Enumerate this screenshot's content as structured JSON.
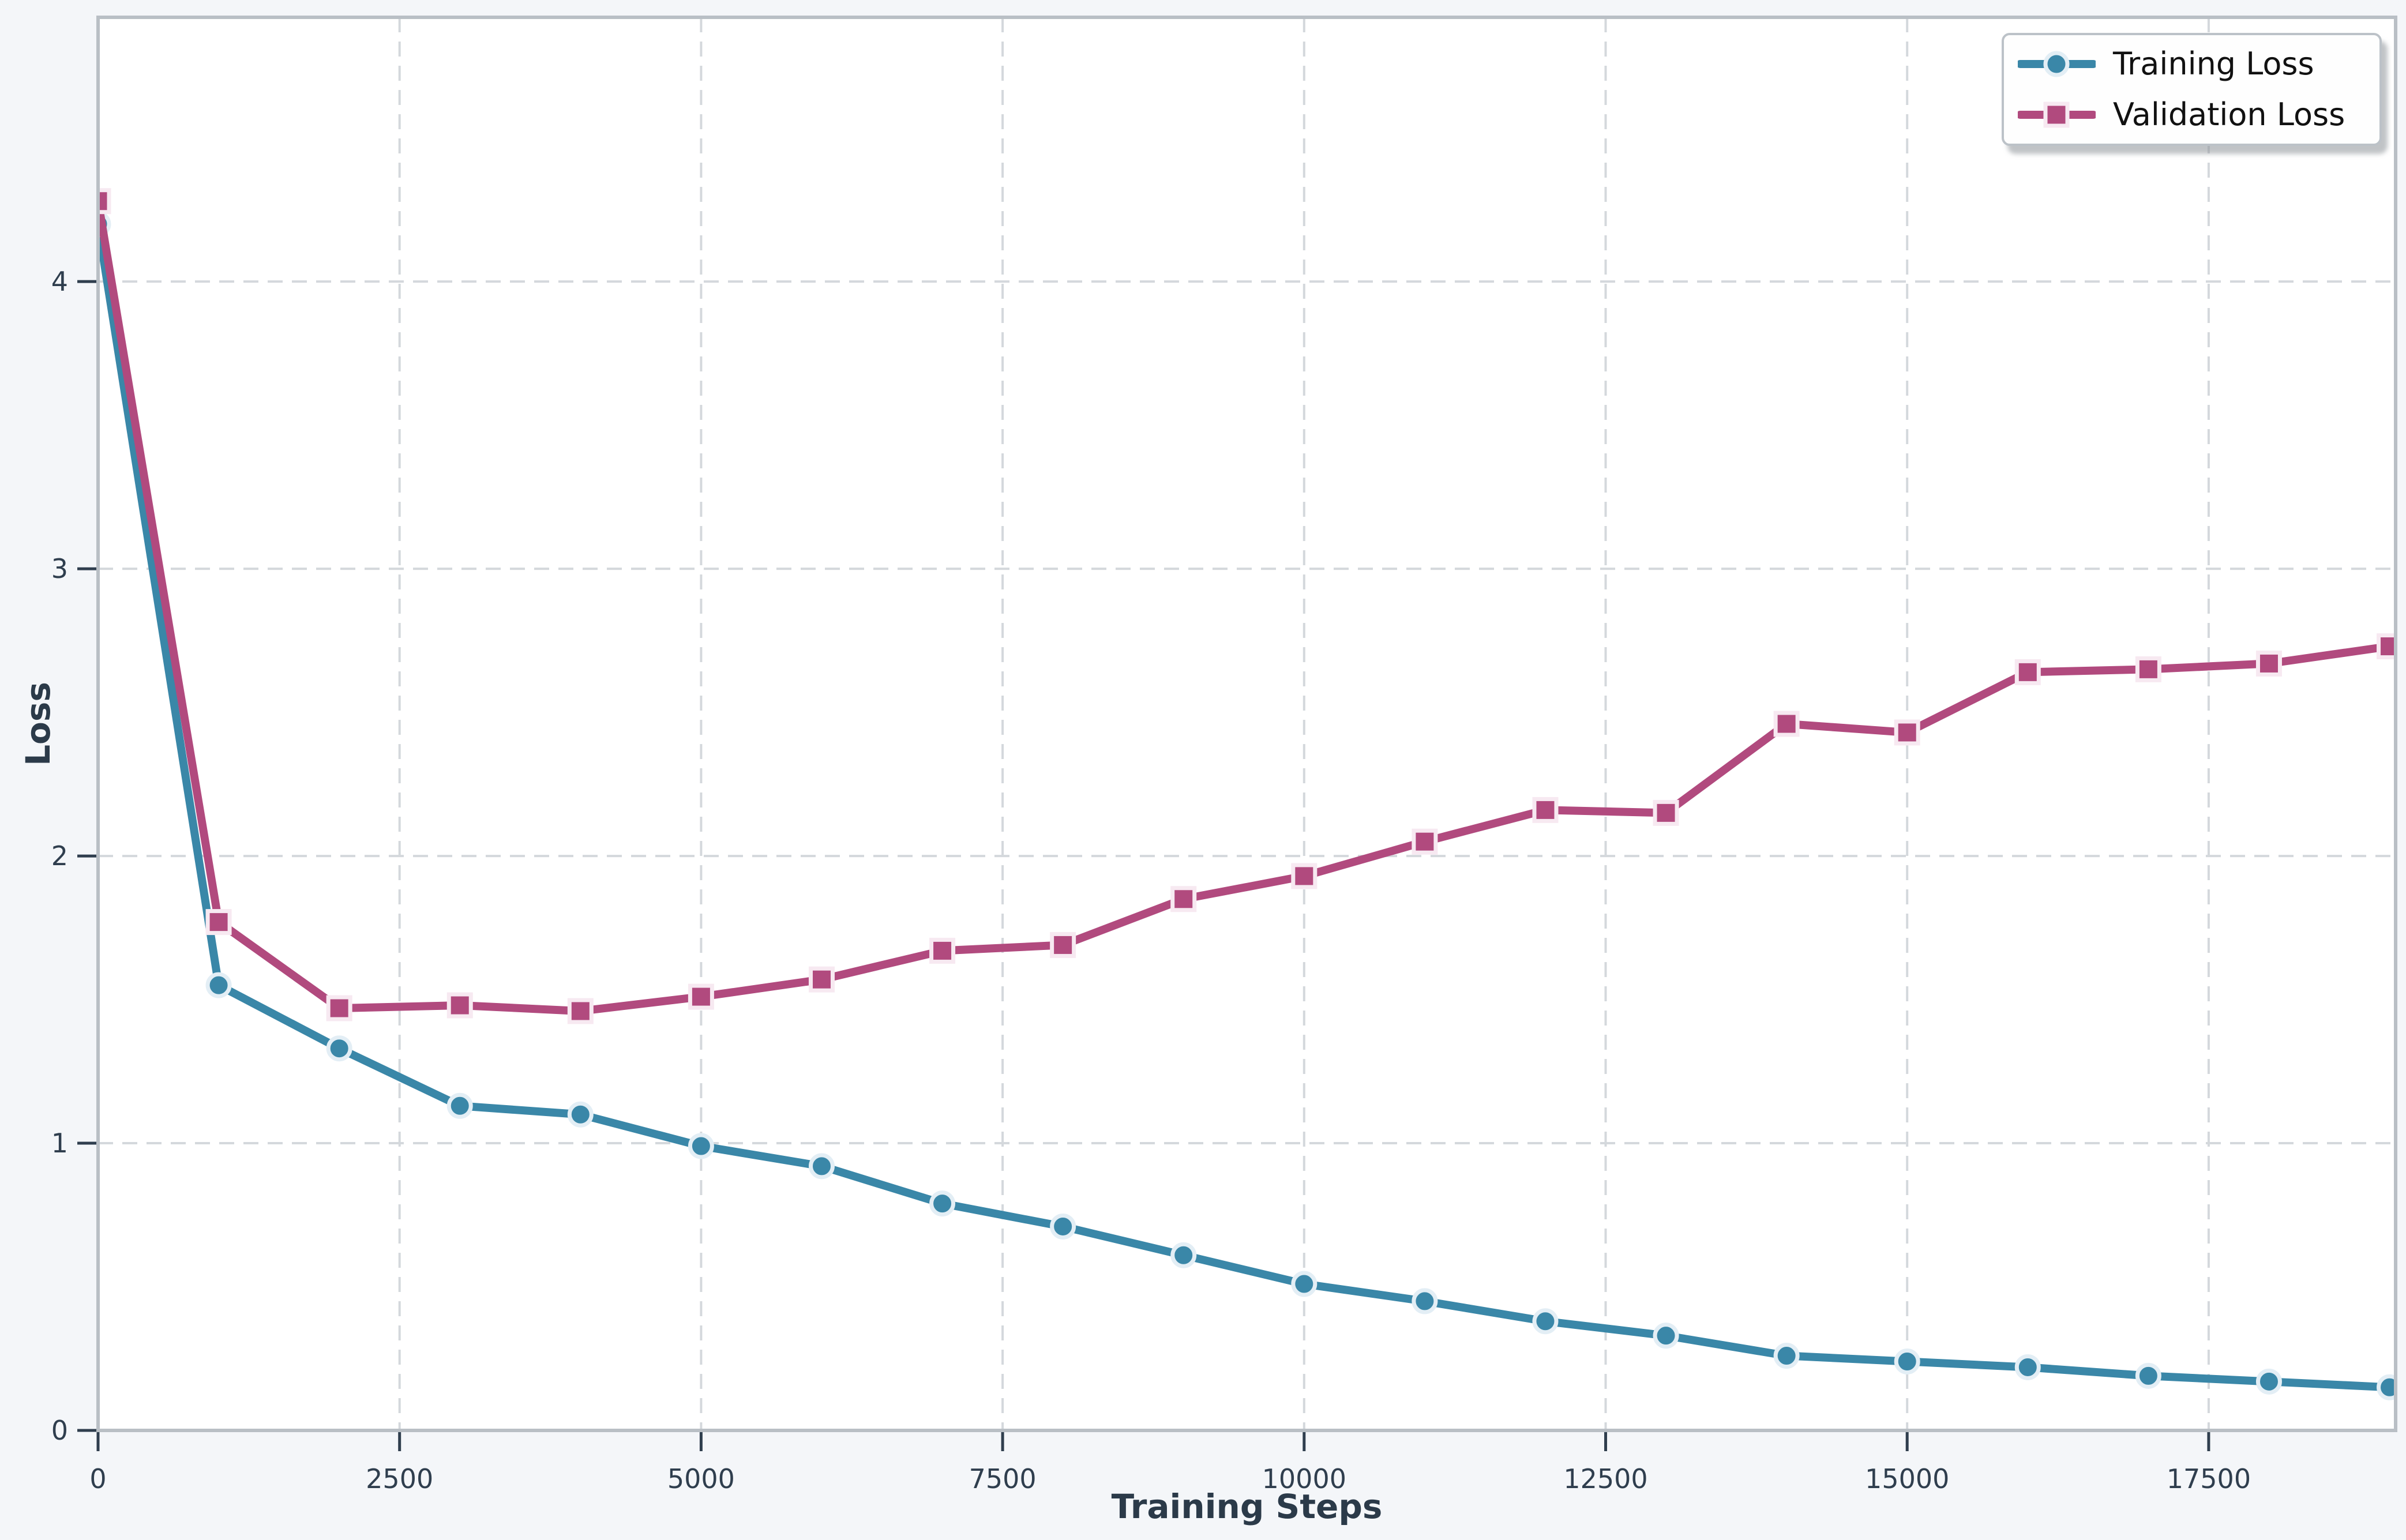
{
  "chart_data": {
    "type": "line",
    "title": "",
    "xlabel": "Training Steps",
    "ylabel": "Loss",
    "x": [
      0,
      1000,
      2000,
      3000,
      4000,
      5000,
      6000,
      7000,
      8000,
      9000,
      10000,
      11000,
      12000,
      13000,
      14000,
      15000,
      16000,
      17000,
      18000,
      19000
    ],
    "series": [
      {
        "name": "Training Loss",
        "marker": "circle",
        "color": "#3a87a8",
        "marker_edge": "#e3eef5",
        "values": [
          4.2,
          1.55,
          1.33,
          1.13,
          1.1,
          0.99,
          0.92,
          0.79,
          0.71,
          0.61,
          0.51,
          0.45,
          0.38,
          0.33,
          0.26,
          0.24,
          0.22,
          0.19,
          0.17,
          0.15
        ]
      },
      {
        "name": "Validation Loss",
        "marker": "square",
        "color": "#b14a7e",
        "marker_edge": "#f7e9f1",
        "values": [
          4.28,
          1.77,
          1.47,
          1.48,
          1.46,
          1.51,
          1.57,
          1.67,
          1.69,
          1.85,
          1.93,
          2.05,
          2.16,
          2.15,
          2.46,
          2.43,
          2.64,
          2.65,
          2.67,
          2.73
        ]
      }
    ],
    "xticks": [
      0,
      2500,
      5000,
      7500,
      10000,
      12500,
      15000,
      17500
    ],
    "yticks": [
      0,
      1,
      2,
      3,
      4
    ],
    "xlim": [
      0,
      19050
    ],
    "ylim": [
      0,
      4.92
    ],
    "grid": true,
    "legend_position": "upper right"
  },
  "colors": {
    "figure_bg": "#f4f6f9",
    "plot_bg": "#ffffff",
    "grid": "#d4d8dc",
    "spine": "#b9bfc5",
    "tick_text": "#2f3e4e",
    "axis_label_text": "#2b3a49",
    "legend_text": "#111111",
    "legend_border": "#bcc2c8",
    "legend_bg": "#fefefe",
    "legend_shadow": "rgba(140,146,152,0.55)"
  }
}
